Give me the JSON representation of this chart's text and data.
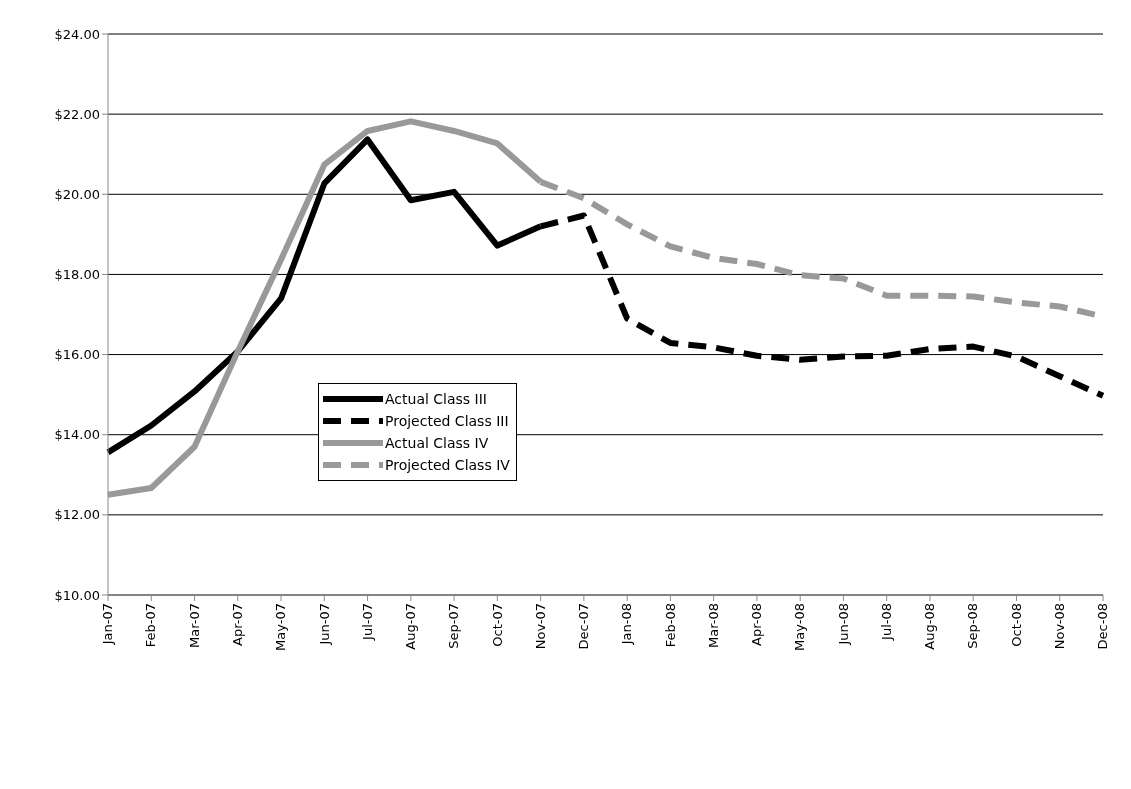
{
  "chart_data": {
    "type": "line",
    "categories": [
      "Jan-07",
      "Feb-07",
      "Mar-07",
      "Apr-07",
      "May-07",
      "Jun-07",
      "Jul-07",
      "Aug-07",
      "Sep-07",
      "Oct-07",
      "Nov-07",
      "Dec-07",
      "Jan-08",
      "Feb-08",
      "Mar-08",
      "Apr-08",
      "May-08",
      "Jun-08",
      "Jul-08",
      "Aug-08",
      "Sep-08",
      "Oct-08",
      "Nov-08",
      "Dec-08"
    ],
    "series": [
      {
        "name": "Actual Class III",
        "color": "#000000",
        "line_style": "solid",
        "values": [
          13.56,
          14.23,
          15.08,
          16.08,
          17.4,
          20.27,
          21.37,
          19.85,
          20.06,
          18.72,
          19.2,
          null,
          null,
          null,
          null,
          null,
          null,
          null,
          null,
          null,
          null,
          null,
          null,
          null
        ]
      },
      {
        "name": "Projected Class III",
        "color": "#000000",
        "line_style": "dashed",
        "values": [
          null,
          null,
          null,
          null,
          null,
          null,
          null,
          null,
          null,
          null,
          19.2,
          19.47,
          16.9,
          16.29,
          16.18,
          15.97,
          15.87,
          15.95,
          15.97,
          16.14,
          16.2,
          15.95,
          15.46,
          14.97
        ]
      },
      {
        "name": "Actual Class IV",
        "color": "#999999",
        "line_style": "solid",
        "values": [
          12.5,
          12.67,
          13.7,
          16.08,
          18.37,
          20.74,
          21.58,
          21.82,
          21.58,
          21.27,
          20.31,
          null,
          null,
          null,
          null,
          null,
          null,
          null,
          null,
          null,
          null,
          null,
          null,
          null
        ]
      },
      {
        "name": "Projected Class IV",
        "color": "#999999",
        "line_style": "dashed",
        "values": [
          null,
          null,
          null,
          null,
          null,
          null,
          null,
          null,
          null,
          null,
          20.31,
          19.9,
          19.25,
          18.7,
          18.41,
          18.26,
          17.98,
          17.9,
          17.47,
          17.47,
          17.45,
          17.3,
          17.2,
          16.95
        ]
      }
    ],
    "ylim": [
      10,
      24
    ],
    "yticks": [
      {
        "value": 10,
        "label": "$10.00"
      },
      {
        "value": 12,
        "label": "$12.00"
      },
      {
        "value": 14,
        "label": "$14.00"
      },
      {
        "value": 16,
        "label": "$16.00"
      },
      {
        "value": 18,
        "label": "$18.00"
      },
      {
        "value": 20,
        "label": "$20.00"
      },
      {
        "value": 22,
        "label": "$22.00"
      },
      {
        "value": 24,
        "label": "$24.00"
      }
    ],
    "grid": "y",
    "legend": "center",
    "marker": "none"
  }
}
